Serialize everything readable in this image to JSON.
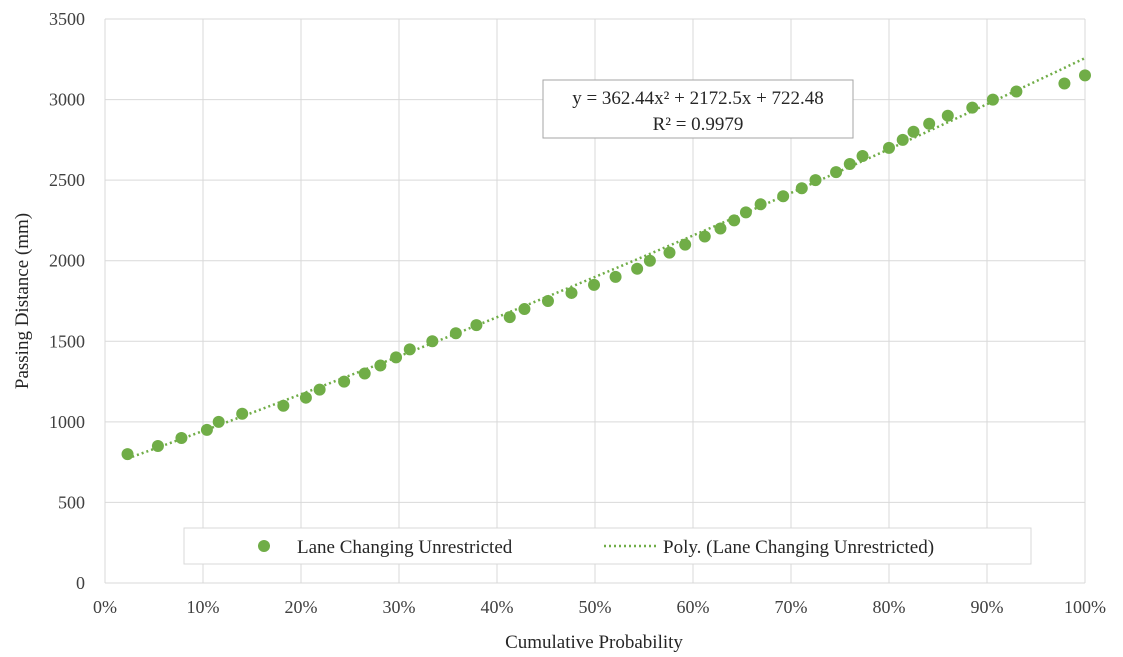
{
  "chart_data": {
    "type": "scatter",
    "xlabel": "Cumulative Probability",
    "ylabel": "Passing Distance (mm)",
    "xlim": [
      0,
      1
    ],
    "ylim": [
      0,
      3500
    ],
    "x_ticks": [
      0,
      0.1,
      0.2,
      0.3,
      0.4,
      0.5,
      0.6,
      0.7,
      0.8,
      0.9,
      1.0
    ],
    "x_tick_labels": [
      "0%",
      "10%",
      "20%",
      "30%",
      "40%",
      "50%",
      "60%",
      "70%",
      "80%",
      "90%",
      "100%"
    ],
    "y_ticks": [
      0,
      500,
      1000,
      1500,
      2000,
      2500,
      3000,
      3500
    ],
    "y_tick_labels": [
      "0",
      "500",
      "1000",
      "1500",
      "2000",
      "2500",
      "3000",
      "3500"
    ],
    "grid": true,
    "legend_position": "bottom",
    "series": [
      {
        "name": "Lane Changing Unrestricted",
        "color": "#70ad47",
        "points": [
          [
            0.023,
            800
          ],
          [
            0.054,
            850
          ],
          [
            0.078,
            900
          ],
          [
            0.104,
            950
          ],
          [
            0.116,
            1000
          ],
          [
            0.14,
            1050
          ],
          [
            0.182,
            1100
          ],
          [
            0.205,
            1150
          ],
          [
            0.219,
            1200
          ],
          [
            0.244,
            1250
          ],
          [
            0.265,
            1300
          ],
          [
            0.281,
            1350
          ],
          [
            0.297,
            1400
          ],
          [
            0.311,
            1450
          ],
          [
            0.334,
            1500
          ],
          [
            0.358,
            1550
          ],
          [
            0.379,
            1600
          ],
          [
            0.413,
            1650
          ],
          [
            0.428,
            1700
          ],
          [
            0.452,
            1750
          ],
          [
            0.476,
            1800
          ],
          [
            0.499,
            1850
          ],
          [
            0.521,
            1900
          ],
          [
            0.543,
            1950
          ],
          [
            0.556,
            2000
          ],
          [
            0.576,
            2050
          ],
          [
            0.592,
            2100
          ],
          [
            0.612,
            2150
          ],
          [
            0.628,
            2200
          ],
          [
            0.642,
            2250
          ],
          [
            0.654,
            2300
          ],
          [
            0.669,
            2350
          ],
          [
            0.692,
            2400
          ],
          [
            0.711,
            2450
          ],
          [
            0.725,
            2500
          ],
          [
            0.746,
            2550
          ],
          [
            0.76,
            2600
          ],
          [
            0.773,
            2650
          ],
          [
            0.8,
            2700
          ],
          [
            0.814,
            2750
          ],
          [
            0.825,
            2800
          ],
          [
            0.841,
            2850
          ],
          [
            0.86,
            2900
          ],
          [
            0.885,
            2950
          ],
          [
            0.906,
            3000
          ],
          [
            0.93,
            3050
          ],
          [
            0.979,
            3100
          ],
          [
            1.0,
            3150
          ]
        ]
      }
    ],
    "trendline": {
      "name": "Poly. (Lane Changing Unrestricted)",
      "type": "polynomial",
      "color": "#70ad47",
      "coefficients": [
        362.44,
        2172.5,
        722.48
      ],
      "x_range": [
        0.023,
        1.0
      ]
    },
    "annotation": {
      "equation": "y = 362.44x² + 2172.5x + 722.48",
      "r_squared": "R² = 0.9979"
    }
  }
}
